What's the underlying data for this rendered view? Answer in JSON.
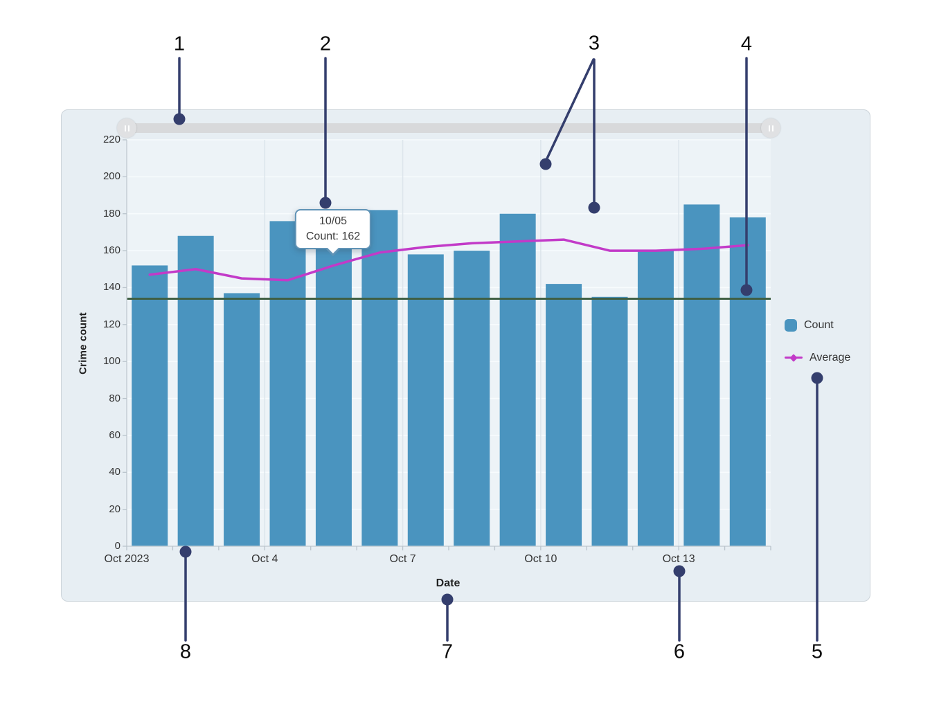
{
  "figure": {
    "description": "annotated bar chart with numbered callouts",
    "callouts": [
      {
        "label": "1",
        "target": "time-range-slider"
      },
      {
        "label": "2",
        "target": "tooltip"
      },
      {
        "label": "3",
        "target": "grid-lines"
      },
      {
        "label": "4",
        "target": "guide-line"
      },
      {
        "label": "5",
        "target": "legend"
      },
      {
        "label": "6",
        "target": "axis-tick-label"
      },
      {
        "label": "7",
        "target": "axis-title"
      },
      {
        "label": "8",
        "target": "x-axis"
      }
    ]
  },
  "slider": {
    "left_handle_icon": "grip-icon",
    "right_handle_icon": "grip-icon"
  },
  "tooltip": {
    "title": "10/05",
    "body": "Count: 162"
  },
  "legend": {
    "items": [
      {
        "label": "Count",
        "swatch": "bar",
        "color": "#4a94bf"
      },
      {
        "label": "Average",
        "swatch": "line",
        "color": "#c23ac8"
      }
    ]
  },
  "chart_data": {
    "type": "bar",
    "title": "",
    "xlabel": "Date",
    "ylabel": "Crime count",
    "x": [
      "10/01",
      "10/02",
      "10/03",
      "10/04",
      "10/05",
      "10/06",
      "10/07",
      "10/08",
      "10/09",
      "10/10",
      "10/11",
      "10/12",
      "10/13",
      "10/14"
    ],
    "x_tick_labels": [
      {
        "pos": 0,
        "label": "Oct 2023"
      },
      {
        "pos": 3,
        "label": "Oct 4"
      },
      {
        "pos": 6,
        "label": "Oct 7"
      },
      {
        "pos": 9,
        "label": "Oct 10"
      },
      {
        "pos": 12,
        "label": "Oct 13"
      }
    ],
    "ylim": [
      0,
      220
    ],
    "ytick_step": 20,
    "grid": true,
    "legend_position": "right",
    "series": [
      {
        "name": "Count",
        "type": "bar",
        "color": "#4a94bf",
        "values": [
          152,
          168,
          137,
          176,
          162,
          182,
          158,
          160,
          180,
          142,
          135,
          160,
          185,
          178
        ]
      },
      {
        "name": "Average",
        "type": "line",
        "color": "#c23ac8",
        "values": [
          147,
          150,
          145,
          144,
          152,
          159,
          162,
          164,
          165,
          166,
          160,
          160,
          161,
          163
        ]
      }
    ],
    "guide_line": {
      "value": 134,
      "color": "#3f5f44"
    }
  },
  "colors": {
    "bar": "#4a94bf",
    "average_line": "#c23ac8",
    "guide_line": "#3f5f44",
    "callout": "#343e6d",
    "card_bg": "#e7eef3",
    "plot_bg": "#edf3f7"
  }
}
